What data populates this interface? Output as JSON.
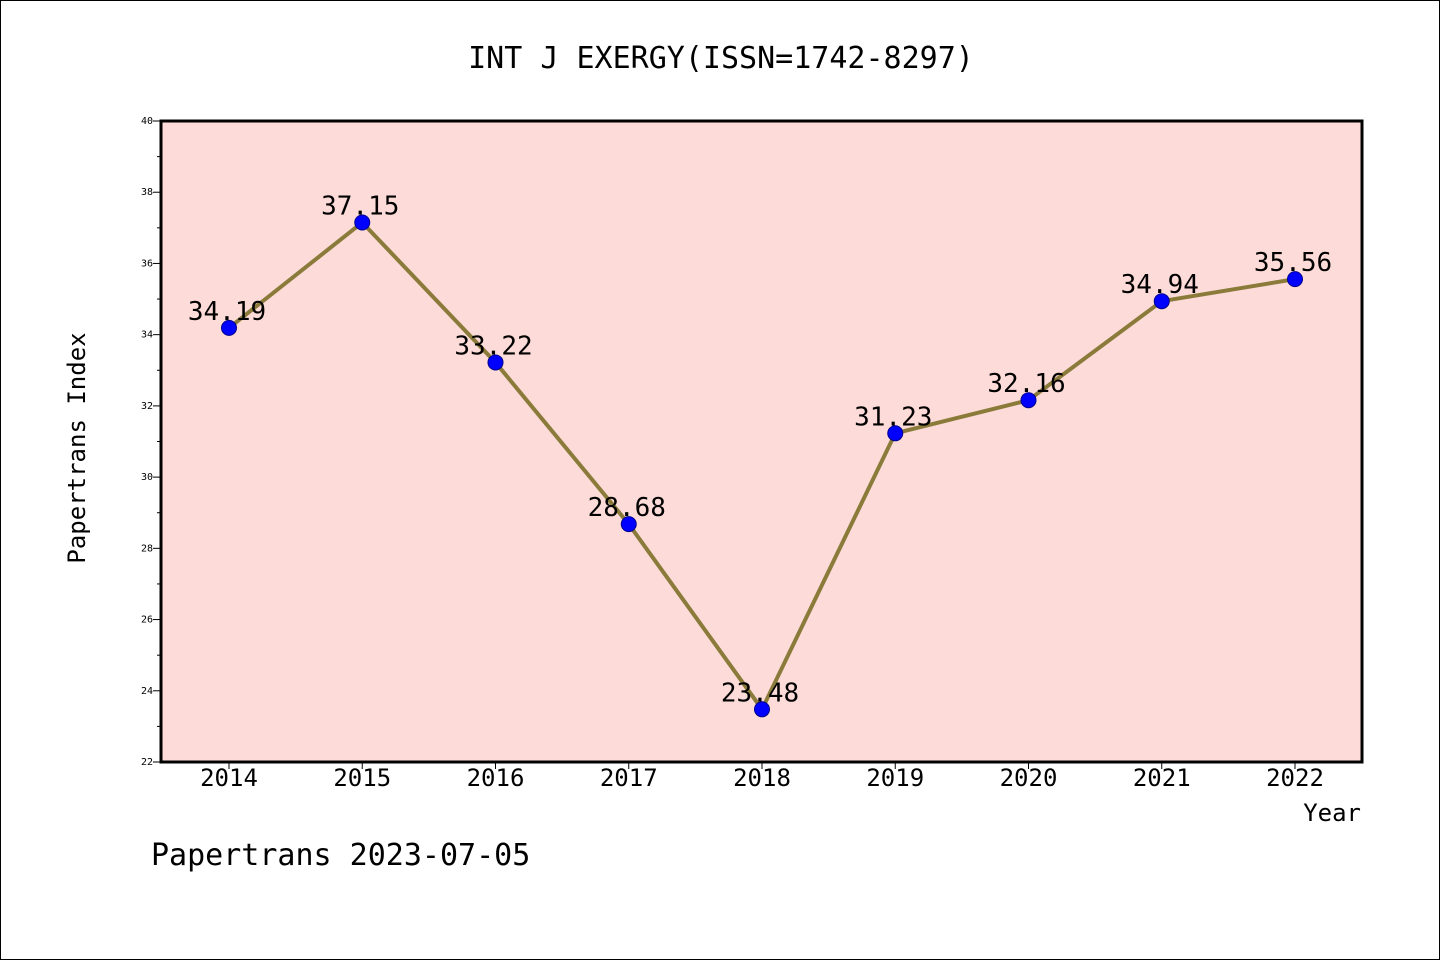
{
  "chart_data": {
    "type": "line",
    "title": "INT J EXERGY(ISSN=1742-8297)",
    "xlabel": "Year",
    "ylabel": "Papertrans Index",
    "categories": [
      "2014",
      "2015",
      "2016",
      "2017",
      "2018",
      "2019",
      "2020",
      "2021",
      "2022"
    ],
    "series": [
      {
        "values": [
          34.19,
          37.15,
          33.22,
          28.68,
          23.48,
          31.23,
          32.16,
          34.94,
          35.56
        ],
        "labels": [
          "34.19",
          "37.15",
          "33.22",
          "28.68",
          "23.48",
          "31.23",
          "32.16",
          "34.94",
          "35.56"
        ]
      }
    ],
    "ylim": [
      22,
      40
    ],
    "yticks": [
      "22",
      "24",
      "26",
      "28",
      "30",
      "32",
      "34",
      "36",
      "38",
      "40"
    ],
    "grid": false,
    "colors": {
      "plot_background": "#fddbd8",
      "line": "#8b7b3a",
      "marker": "#0000ff"
    }
  },
  "footer": "Papertrans 2023-07-05"
}
